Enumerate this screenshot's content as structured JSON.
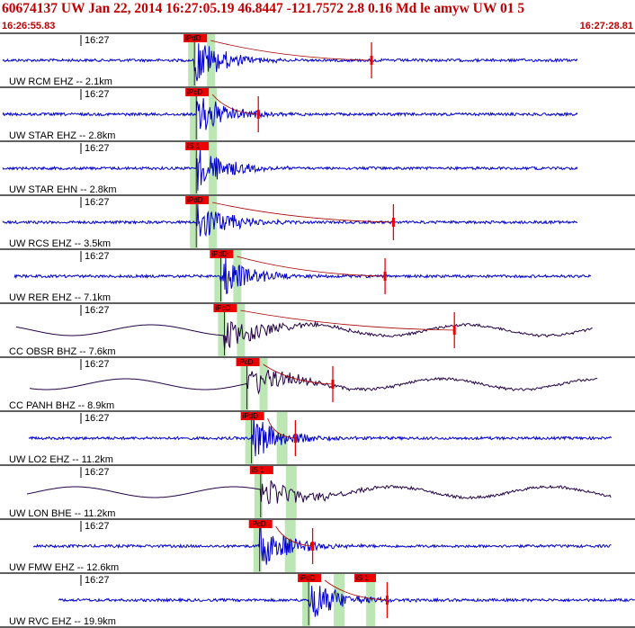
{
  "header": {
    "title": "60674137 UW Jan 22, 2014 16:27:05.19   46.8447 -121.7572  2.8 0.16 Md le amyw UW 01   5",
    "start_time": "16:26:55.83",
    "end_time": "16:27:28.81"
  },
  "colors": {
    "accent": "#c00000",
    "trace_blue": "#0000cc",
    "trace_dark": "#220044",
    "pick_red": "#ee0000",
    "window_green": "#bde6b5"
  },
  "chart_data": {
    "type": "line",
    "x_range": [
      "16:26:55.83",
      "16:27:28.81"
    ],
    "tick_label": "16:27",
    "grid": false,
    "traces": [
      {
        "label": "UW RCM EHZ -- 2.1km",
        "pick": "iPdD",
        "color": "#0000cc",
        "waveform": "short_period",
        "duration_s": 30.0,
        "p_s": 10.5,
        "end_s": 20.2
      },
      {
        "label": "UW STAR EHZ -- 2.8km",
        "pick": "iPcD",
        "color": "#0000cc",
        "waveform": "short_period",
        "duration_s": 30.0,
        "p_s": 10.6,
        "end_s": 14.0
      },
      {
        "label": "UW STAR EHN -- 2.8km",
        "pick": "iS 1",
        "color": "#0000cc",
        "waveform": "short_period",
        "duration_s": 30.0,
        "p_s": 10.6
      },
      {
        "label": "UW RCS EHZ -- 3.5km",
        "pick": "iPdD",
        "color": "#0000cc",
        "waveform": "short_period",
        "duration_s": 30.0,
        "p_s": 10.6,
        "end_s": 21.4
      },
      {
        "label": "UW RER EHZ -- 7.1km",
        "pick": "iPdD",
        "color": "#0000cc",
        "waveform": "short_period",
        "duration_s": 30.0,
        "p_s": 11.3,
        "end_s": 20.3
      },
      {
        "label": "CC OBSR BHZ -- 7.6km",
        "pick": "iPcD",
        "color": "#220044",
        "waveform": "broadband",
        "duration_s": 30.0,
        "p_s": 11.4,
        "end_s": 24.0
      },
      {
        "label": "CC PANH BHZ -- 8.9km",
        "pick": "iPcD",
        "color": "#220044",
        "waveform": "broadband",
        "duration_s": 30.0,
        "p_s": 11.9,
        "end_s": 16.6
      },
      {
        "label": "UW LO2 EHZ -- 11.2km",
        "pick": "iPdD",
        "color": "#0000cc",
        "waveform": "short_period",
        "duration_s": 30.0,
        "p_s": 12.2,
        "end_s": 14.6
      },
      {
        "label": "UW LON BHE -- 11.2km",
        "pick": "iS 1",
        "color": "#220044",
        "waveform": "broadband",
        "duration_s": 30.0,
        "p_s": 12.8
      },
      {
        "label": "UW FMW EHZ -- 12.6km",
        "pick": "iPcD",
        "color": "#0000cc",
        "waveform": "short_period",
        "duration_s": 30.0,
        "p_s": 12.4,
        "end_s": 15.3
      },
      {
        "label": "UW RVC EHZ -- 19.9km",
        "pick": "iPdD",
        "pick2": "iS 1",
        "color": "#0000cc",
        "waveform": "short_period",
        "duration_s": 30.0,
        "p_s": 13.7,
        "s_s": 16.8,
        "end_s": 18.0
      }
    ]
  }
}
